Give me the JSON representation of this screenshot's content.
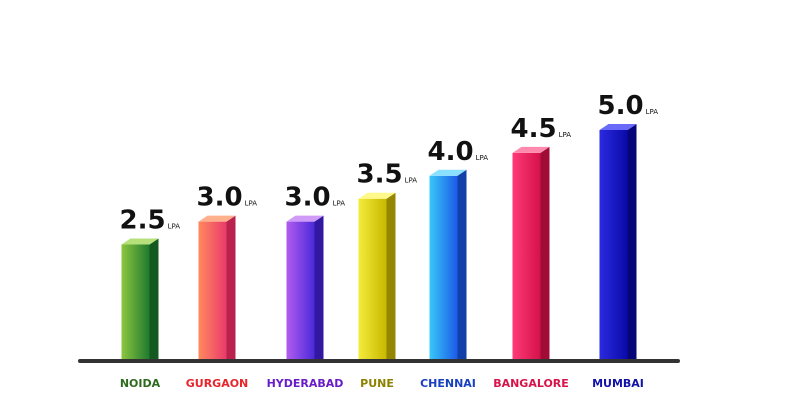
{
  "chart_data": {
    "type": "bar",
    "categories": [
      "NOIDA",
      "GURGAON",
      "HYDERABAD",
      "PUNE",
      "CHENNAI",
      "BANGALORE",
      "MUMBAI"
    ],
    "values": [
      2.5,
      3.0,
      3.0,
      3.5,
      4.0,
      4.5,
      5.0
    ],
    "value_labels": [
      "2.5",
      "3.0",
      "3.0",
      "3.5",
      "4.0",
      "4.5",
      "5.0"
    ],
    "unit": "LPA",
    "ylim": [
      0,
      5.5
    ],
    "grid": false,
    "legend": "none",
    "title": "",
    "xlabel": "",
    "ylabel": "",
    "colors": [
      {
        "light": "#8cc63f",
        "dark": "#1e7a2e",
        "side": "#145a20",
        "top": "#b6e07a",
        "label": "#2e6b1e"
      },
      {
        "light": "#ff8a5c",
        "dark": "#e83a6c",
        "side": "#b8224d",
        "top": "#ffb08c",
        "label": "#e8242c"
      },
      {
        "light": "#b25cf0",
        "dark": "#4a2ad8",
        "side": "#3218a0",
        "top": "#d09af8",
        "label": "#6a1cc8"
      },
      {
        "light": "#f4ec3a",
        "dark": "#c8b800",
        "side": "#948600",
        "top": "#fff88a",
        "label": "#8c8200"
      },
      {
        "light": "#38c8f8",
        "dark": "#1c5ae8",
        "side": "#1240a8",
        "top": "#8ae0ff",
        "label": "#1a40c0"
      },
      {
        "light": "#ff3a78",
        "dark": "#d4124a",
        "side": "#a00c36",
        "top": "#ff8aae",
        "label": "#d8124a"
      },
      {
        "light": "#2a2ae0",
        "dark": "#0a0aa8",
        "side": "#060678",
        "top": "#6a6af8",
        "label": "#1212a8"
      }
    ],
    "axis_color": "#333333"
  }
}
